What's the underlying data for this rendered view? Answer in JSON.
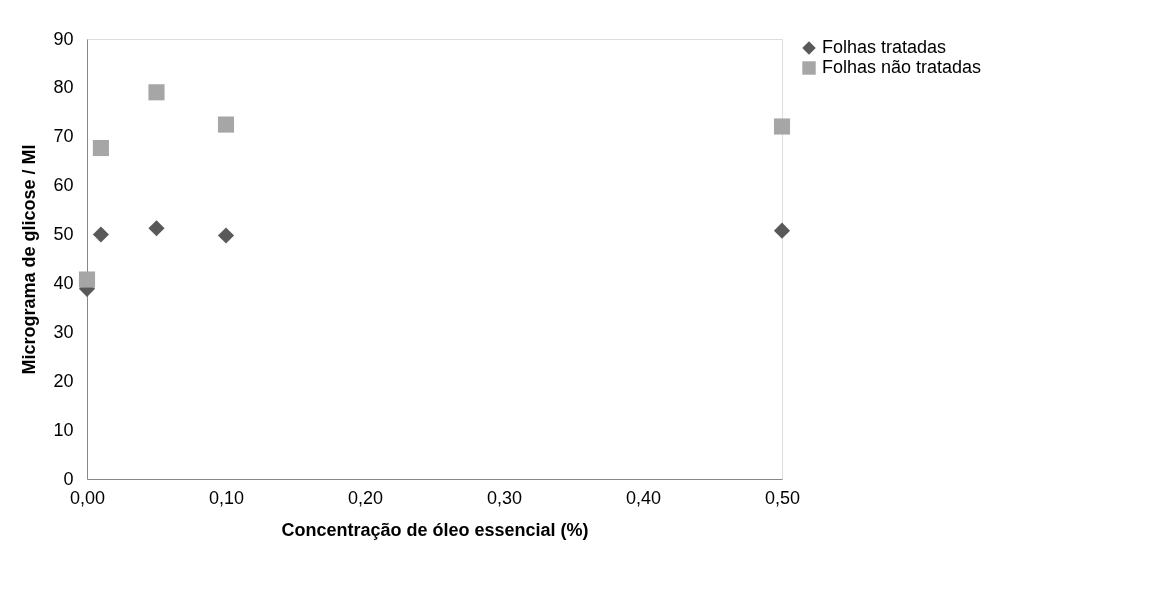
{
  "chart_data": {
    "type": "scatter",
    "xlabel": "Concentração de óleo essencial (%)",
    "ylabel": "Micrograma de glicose / Ml",
    "x": [
      0,
      0.01,
      0.05,
      0.1,
      0.5
    ],
    "series": [
      {
        "name": "Folhas tratadas",
        "color": "#595959",
        "marker": "diamond",
        "values": [
          38.9,
          50.0,
          51.3,
          49.8,
          50.8
        ]
      },
      {
        "name": "Folhas não tratadas",
        "color": "#a6a6a6",
        "marker": "square",
        "values": [
          40.8,
          67.7,
          79.1,
          72.5,
          72.1
        ]
      }
    ],
    "xlim": [
      0,
      0.5
    ],
    "xticks": [
      {
        "value": 0,
        "label": "0,00"
      },
      {
        "value": 0.1,
        "label": "0,10"
      },
      {
        "value": 0.2,
        "label": "0,20"
      },
      {
        "value": 0.3,
        "label": "0,30"
      },
      {
        "value": 0.4,
        "label": "0,40"
      },
      {
        "value": 0.5,
        "label": "0,50"
      }
    ],
    "ylim": [
      0,
      90
    ],
    "yticks": [
      0,
      10,
      20,
      30,
      40,
      50,
      60,
      70,
      80,
      90
    ],
    "grid": false,
    "legend": "right"
  }
}
